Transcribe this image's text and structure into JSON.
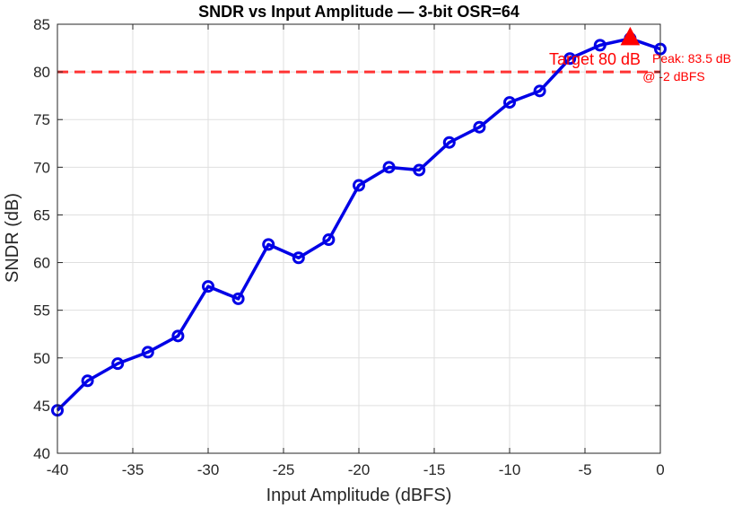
{
  "chart_data": {
    "type": "line",
    "title": "SNDR vs Input Amplitude — 3-bit OSR=64",
    "xlabel": "Input Amplitude (dBFS)",
    "ylabel": "SNDR (dB)",
    "xlim": [
      -40,
      0
    ],
    "ylim": [
      40,
      85
    ],
    "xticks": [
      -40,
      -35,
      -30,
      -25,
      -20,
      -15,
      -10,
      -5,
      0
    ],
    "yticks": [
      40,
      45,
      50,
      55,
      60,
      65,
      70,
      75,
      80,
      85
    ],
    "grid": true,
    "series": [
      {
        "color": "#0000e6",
        "marker": "circle",
        "x": [
          -40,
          -38,
          -36,
          -34,
          -32,
          -30,
          -28,
          -26,
          -24,
          -22,
          -20,
          -18,
          -16,
          -14,
          -12,
          -10,
          -8,
          -6,
          -4,
          -2,
          0
        ],
        "y": [
          44.5,
          47.6,
          49.4,
          50.6,
          52.3,
          57.5,
          56.2,
          61.9,
          60.5,
          62.4,
          68.1,
          70.0,
          69.7,
          72.6,
          74.2,
          76.8,
          78.0,
          81.4,
          82.8,
          83.5,
          82.4
        ]
      }
    ],
    "reference_line": {
      "y": 80,
      "label": "Target 80 dB",
      "color": "#ff3333",
      "style": "dashed"
    },
    "peak": {
      "x": -2,
      "y": 83.5,
      "label_line1": "Peak: 83.5 dB",
      "label_line2": "@ -2 dBFS",
      "color": "#ff0000",
      "marker": "triangle"
    }
  }
}
